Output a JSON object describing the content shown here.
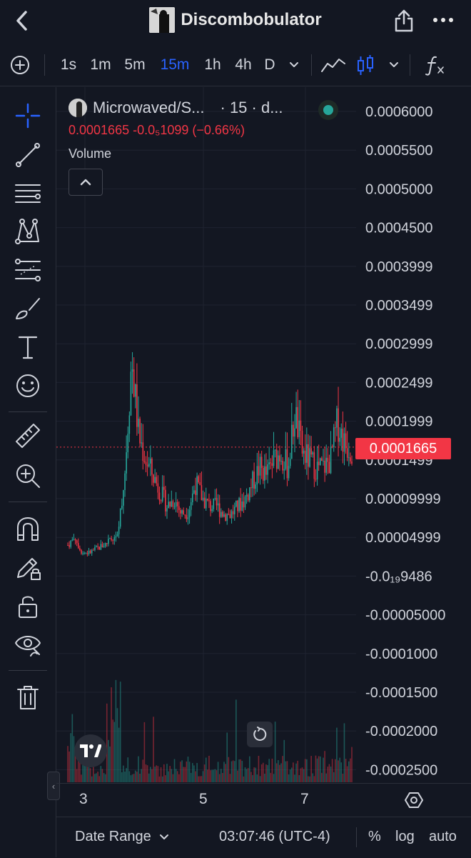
{
  "header": {
    "title": "Discombobulator"
  },
  "toolbar": {
    "intervals": [
      "1s",
      "1m",
      "5m",
      "15m",
      "1h",
      "4h",
      "D"
    ],
    "active_interval": "15m"
  },
  "legend": {
    "symbol": "Microwaved/S...",
    "interval_suffix": "· 15 · d...",
    "ohlc": "0.0001665  -0.0₅1099 (−0.66%)",
    "volume_label": "Volume"
  },
  "price_axis": {
    "labels": [
      "0.0006000",
      "0.0005500",
      "0.0005000",
      "0.0004500",
      "0.0003999",
      "0.0003499",
      "0.0002999",
      "0.0002499",
      "0.0001999",
      "0.0001499",
      "0.00009999",
      "0.00004999",
      "-0.0₁₉9486",
      "-0.00005000",
      "-0.0001000",
      "-0.0001500",
      "-0.0002000",
      "-0.0002500"
    ],
    "current_price": "0.0001665"
  },
  "time_axis": {
    "labels": [
      "3",
      "5",
      "7"
    ]
  },
  "bottom_bar": {
    "date_range": "Date Range",
    "clock": "03:07:46 (UTC-4)",
    "percent": "%",
    "log": "log",
    "auto": "auto"
  },
  "colors": {
    "up": "#26a69a",
    "down": "#f23645",
    "accent": "#2962ff",
    "bg": "#131722"
  },
  "chart_data": {
    "type": "candlestick",
    "series": [
      {
        "name": "Microwaved/S...",
        "values": [
          4e-05,
          5e-05,
          3e-05,
          3e-05,
          3.5e-05,
          4e-05,
          4.5e-05,
          5e-05,
          0.00013,
          0.00028,
          0.00018,
          0.00015,
          0.00013,
          0.00011,
          9e-05,
          0.0001,
          8e-05,
          8.5e-05,
          0.00012,
          0.0001,
          9e-05,
          9e-05,
          8e-05,
          8e-05,
          9e-05,
          0.0001,
          0.00012,
          0.00014,
          0.00013,
          0.00015,
          0.00016,
          0.00014,
          0.00021,
          0.00016,
          0.00015,
          0.00014,
          0.00014,
          0.00015,
          0.0002,
          0.00017,
          0.000165
        ]
      }
    ],
    "ylim": [
      -0.00026,
      0.00061
    ]
  }
}
